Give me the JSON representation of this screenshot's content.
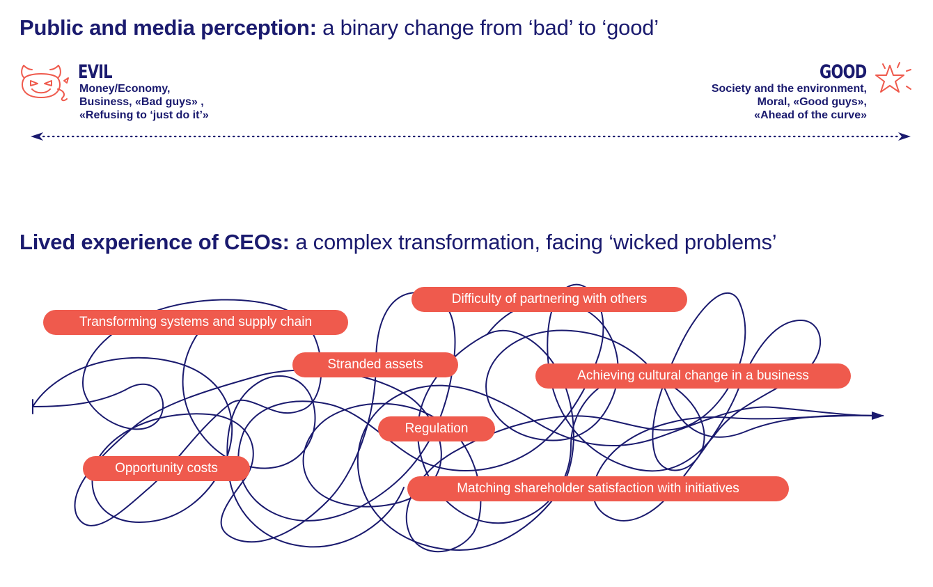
{
  "titles": {
    "top_bold": "Public and media perception:",
    "top_rest": " a binary change from ‘bad’ to ‘good’",
    "bottom_bold": "Lived experience of CEOs:",
    "bottom_rest": " a complex transformation, facing ‘wicked problems’"
  },
  "evil": {
    "label": "EVIL",
    "desc": [
      "Money/Economy,",
      "Business, «Bad guys» ,",
      "«Refusing to ‘just do it’»"
    ],
    "icon": "devil-icon"
  },
  "good": {
    "label": "GOOD",
    "desc": [
      "Society and the environment,",
      "Moral, «Good guys»,",
      "«Ahead of the curve»"
    ],
    "icon": "star-icon"
  },
  "problems": {
    "transform": "Transforming systems and supply chain",
    "partner": "Difficulty of partnering with others",
    "stranded": "Stranded assets",
    "culture": "Achieving cultural change in a business",
    "regulation": "Regulation",
    "opportunity": "Opportunity costs",
    "shareholder": "Matching shareholder satisfaction with initiatives"
  },
  "colors": {
    "navy": "#1a1a6e",
    "coral": "#ef5a4d"
  }
}
